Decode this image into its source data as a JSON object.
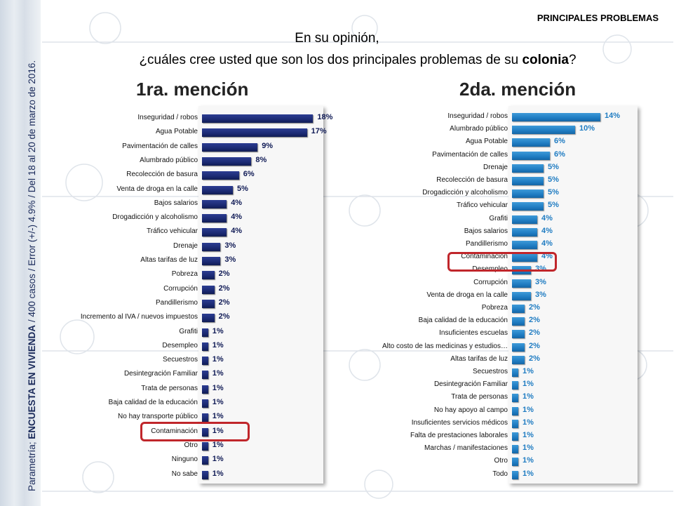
{
  "header": {
    "section": "PRINCIPALES PROBLEMAS",
    "question_line1": "En su opinión,",
    "question_line2_pre": "¿cuáles cree usted que son los dos principales problemas de su ",
    "question_line2_bold": "colonia",
    "question_line2_post": "?"
  },
  "sidebar": {
    "note_pre": "Parametría; ",
    "note_bold": "ENCUESTA EN VIVIENDA",
    "note_post": " / 400 casos / Error (+/-) 4.9% / Del 18 al 20 de marzo de 2016."
  },
  "colors": {
    "bar_first": "#1b2a73",
    "bar_second": "#1f7cc2",
    "value_first": "#0f1a55",
    "value_second": "#1f7cc2",
    "highlight": "#c0262b"
  },
  "chart_data": [
    {
      "type": "bar",
      "orientation": "horizontal",
      "title": "1ra. mención",
      "xlim": [
        0,
        30
      ],
      "highlighted": "Contaminación",
      "categories": [
        "Inseguridad / robos",
        "Agua Potable",
        "Pavimentación de calles",
        "Alumbrado público",
        "Recolección de basura",
        "Venta de droga en la calle",
        "Bajos salarios",
        "Drogadicción y alcoholismo",
        "Tráfico vehicular",
        "Drenaje",
        "Altas tarifas de luz",
        "Pobreza",
        "Corrupción",
        "Pandillerismo",
        "Incremento al IVA / nuevos impuestos",
        "Grafiti",
        "Desempleo",
        "Secuestros",
        "Desintegración Familiar",
        "Trata de personas",
        "Baja calidad de la educación",
        "No hay transporte público",
        "Contaminación",
        "Otro",
        "Ninguno",
        "No sabe"
      ],
      "values": [
        18,
        17,
        9,
        8,
        6,
        5,
        4,
        4,
        4,
        3,
        3,
        2,
        2,
        2,
        2,
        1,
        1,
        1,
        1,
        1,
        1,
        1,
        1,
        1,
        1,
        1
      ],
      "labels": [
        "18%",
        "17%",
        "9%",
        "8%",
        "6%",
        "5%",
        "4%",
        "4%",
        "4%",
        "3%",
        "3%",
        "2%",
        "2%",
        "2%",
        "2%",
        "1%",
        "1%",
        "1%",
        "1%",
        "1%",
        "1%",
        "1%",
        "1%",
        "1%",
        "1%",
        "1%"
      ]
    },
    {
      "type": "bar",
      "orientation": "horizontal",
      "title": "2da. mención",
      "xlim": [
        0,
        30
      ],
      "highlighted": "Contaminación",
      "categories": [
        "Inseguridad / robos",
        "Alumbrado público",
        "Agua Potable",
        "Pavimentación de calles",
        "Drenaje",
        "Recolección de basura",
        "Drogadicción y alcoholismo",
        "Tráfico vehicular",
        "Grafiti",
        "Bajos salarios",
        "Pandillerismo",
        "Contaminación",
        "Desempleo",
        "Corrupción",
        "Venta de droga en la calle",
        "Pobreza",
        "Baja calidad de la educación",
        "Insuficientes escuelas",
        "Alto costo de las medicinas y estudios…",
        "Altas tarifas de luz",
        "Secuestros",
        "Desintegración Familiar",
        "Trata de personas",
        "No hay apoyo al campo",
        "Insuficientes servicios médicos",
        "Falta de prestaciones laborales",
        "Marchas / manifestaciones",
        "Otro",
        "Todo"
      ],
      "values": [
        14,
        10,
        6,
        6,
        5,
        5,
        5,
        5,
        4,
        4,
        4,
        4,
        3,
        3,
        3,
        2,
        2,
        2,
        2,
        2,
        1,
        1,
        1,
        1,
        1,
        1,
        1,
        1,
        1
      ],
      "labels": [
        "14%",
        "10%",
        "6%",
        "6%",
        "5%",
        "5%",
        "5%",
        "5%",
        "4%",
        "4%",
        "4%",
        "4%",
        "3%",
        "3%",
        "3%",
        "2%",
        "2%",
        "2%",
        "2%",
        "2%",
        "1%",
        "1%",
        "1%",
        "1%",
        "1%",
        "1%",
        "1%",
        "1%",
        "1%"
      ]
    }
  ]
}
